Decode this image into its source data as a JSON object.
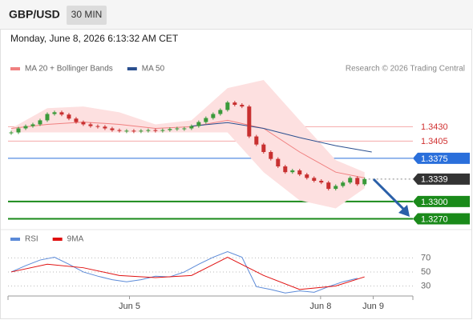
{
  "header": {
    "symbol": "GBP/USD",
    "interval": "30 MIN",
    "timestamp": "Monday, June 8, 2026 6:13:32 AM CET"
  },
  "chart_data": [
    {
      "type": "candlestick",
      "credit": "Research © 2026 Trading Central",
      "up_color": "#3a9a3a",
      "down_color": "#c83030",
      "x": [
        0,
        1,
        2,
        3,
        4,
        5,
        6,
        7,
        8,
        9,
        10,
        11,
        12,
        13,
        14,
        15,
        16,
        17,
        18,
        19,
        20,
        21,
        22,
        23,
        24,
        25,
        26,
        27,
        28,
        29,
        30,
        31,
        32,
        33,
        34,
        35,
        36,
        37,
        38,
        39,
        40,
        41,
        42,
        43,
        44,
        45,
        46,
        47,
        48,
        49
      ],
      "values": [
        1.342,
        1.3427,
        1.3431,
        1.3434,
        1.3441,
        1.3452,
        1.3455,
        1.3451,
        1.3444,
        1.3438,
        1.3434,
        1.3431,
        1.343,
        1.3427,
        1.3424,
        1.3423,
        1.3423,
        1.3422,
        1.3423,
        1.3424,
        1.3423,
        1.3424,
        1.3426,
        1.3427,
        1.3427,
        1.3431,
        1.3438,
        1.3445,
        1.3452,
        1.3459,
        1.3472,
        1.3468,
        1.3465,
        1.3413,
        1.3399,
        1.3386,
        1.3374,
        1.3361,
        1.3351,
        1.3354,
        1.3347,
        1.3341,
        1.3336,
        1.3333,
        1.3322,
        1.3327,
        1.3333,
        1.3341,
        1.333,
        1.3339
      ],
      "series": [
        {
          "name": "MA 20 + Bollinger Bands",
          "color": "#f08080",
          "band_color": "#fde0e0",
          "x": [
            0,
            5,
            10,
            15,
            20,
            25,
            30,
            35,
            40,
            45,
            49
          ],
          "values": [
            1.3427,
            1.3434,
            1.3438,
            1.3434,
            1.3427,
            1.343,
            1.3441,
            1.3427,
            1.3386,
            1.3351,
            1.3341
          ],
          "upper": [
            1.3427,
            1.3462,
            1.3465,
            1.3455,
            1.3434,
            1.3441,
            1.3497,
            1.3511,
            1.3441,
            1.3372,
            1.3351
          ],
          "lower": [
            1.342,
            1.342,
            1.342,
            1.342,
            1.342,
            1.342,
            1.342,
            1.3351,
            1.3302,
            1.3288,
            1.3323
          ]
        },
        {
          "name": "MA 50",
          "color": "#2a4f8f",
          "x": [
            25,
            30,
            35,
            40,
            45,
            50
          ],
          "values": [
            1.3431,
            1.3437,
            1.3427,
            1.3411,
            1.3397,
            1.3386
          ]
        }
      ],
      "levels": [
        {
          "value": 1.343,
          "label": "1.3430",
          "color": "#f4a8a8",
          "label_color": "#d03030",
          "box": false
        },
        {
          "value": 1.3405,
          "label": "1.3405",
          "color": "#f4a8a8",
          "label_color": "#d03030",
          "box": false
        },
        {
          "value": 1.3375,
          "label": "1.3375",
          "color": "#2a6fdb",
          "label_color": "#2a6fdb",
          "box": true
        },
        {
          "value": 1.3339,
          "label": "1.3339",
          "color": "#888888",
          "label_color": "#333333",
          "box": true,
          "dotted": true
        },
        {
          "value": 1.33,
          "label": "1.3300",
          "color": "#1a8a1a",
          "label_color": "#1a8a1a",
          "box": true
        },
        {
          "value": 1.327,
          "label": "1.3270",
          "color": "#1a8a1a",
          "label_color": "#1a8a1a",
          "box": true
        }
      ],
      "xlim": [
        0,
        55.7
      ],
      "ylim": [
        1.3254,
        1.3518
      ]
    },
    {
      "type": "line",
      "series": [
        {
          "name": "RSI",
          "color": "#5b8ad8",
          "x": [
            0,
            2,
            4,
            6,
            8,
            10,
            12,
            14,
            16,
            18,
            20,
            22,
            24,
            26,
            28,
            30,
            32,
            34,
            36,
            38,
            40,
            42,
            44,
            46,
            48
          ],
          "values": [
            50,
            59,
            67,
            71,
            61,
            50,
            44,
            39,
            36,
            39,
            44,
            43,
            50,
            61,
            71,
            79,
            71,
            29,
            25,
            20,
            23,
            21,
            29,
            36,
            41
          ]
        },
        {
          "name": "9MA",
          "color": "#e01010",
          "x": [
            0,
            5,
            10,
            15,
            20,
            25,
            30,
            35,
            40,
            45,
            49
          ],
          "values": [
            50,
            61,
            56,
            45,
            42,
            45,
            71,
            45,
            25,
            30,
            43
          ]
        }
      ],
      "yticks": [
        70,
        50,
        30
      ],
      "ylim": [
        15.7,
        107
      ],
      "xlim": [
        0,
        55.7
      ],
      "xticks": [
        {
          "value": 16.4,
          "label": "Jun 5"
        },
        {
          "value": 42.9,
          "label": "Jun 8"
        },
        {
          "value": 50.2,
          "label": "Jun 9"
        }
      ]
    }
  ]
}
